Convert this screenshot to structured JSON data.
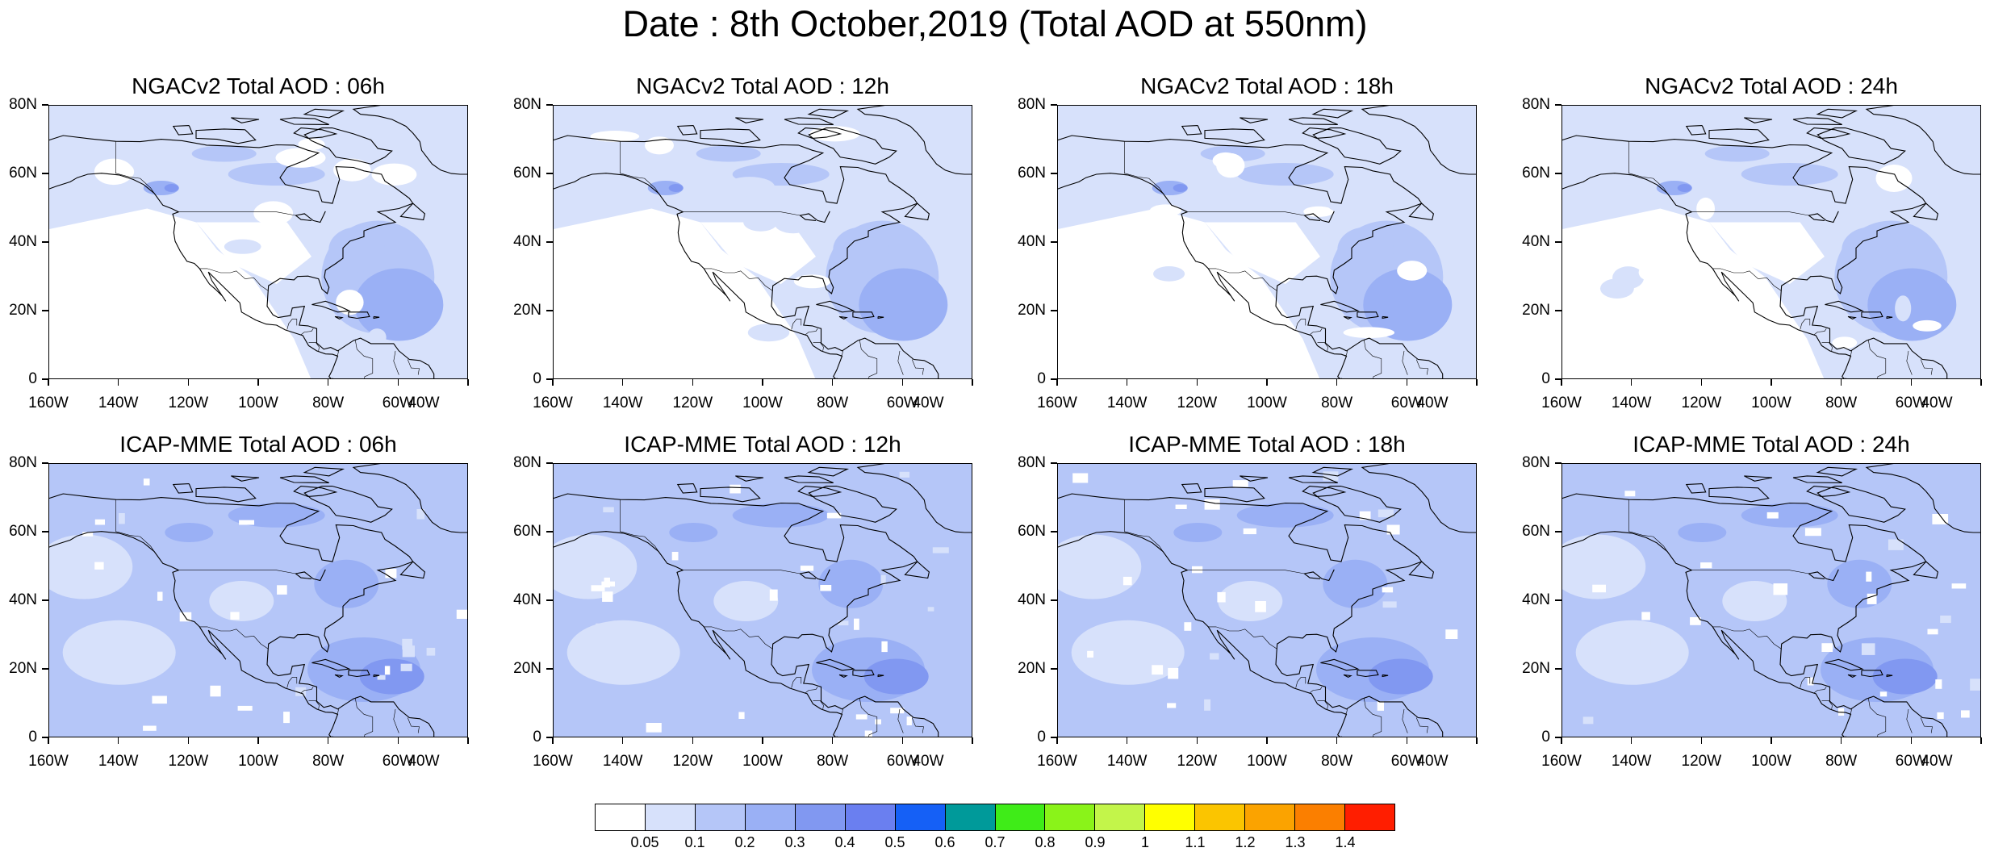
{
  "title": "Date : 8th October,2019 (Total AOD at 550nm)",
  "axes": {
    "lat_labels": [
      "80N",
      "60N",
      "40N",
      "20N",
      "0"
    ],
    "lon_labels": [
      "160W",
      "140W",
      "120W",
      "100W",
      "80W",
      "60W",
      "40W"
    ],
    "lat_range": [
      0,
      80
    ],
    "lon_range": [
      -160,
      -40
    ]
  },
  "panels": [
    {
      "title": "NGACv2 Total AOD : 06h",
      "model": "NGACv2",
      "hour": "06h"
    },
    {
      "title": "NGACv2 Total AOD : 12h",
      "model": "NGACv2",
      "hour": "12h"
    },
    {
      "title": "NGACv2 Total AOD : 18h",
      "model": "NGACv2",
      "hour": "18h"
    },
    {
      "title": "NGACv2 Total AOD : 24h",
      "model": "NGACv2",
      "hour": "24h"
    },
    {
      "title": "ICAP-MME Total AOD : 06h",
      "model": "ICAP-MME",
      "hour": "06h"
    },
    {
      "title": "ICAP-MME Total AOD : 12h",
      "model": "ICAP-MME",
      "hour": "12h"
    },
    {
      "title": "ICAP-MME Total AOD : 18h",
      "model": "ICAP-MME",
      "hour": "18h"
    },
    {
      "title": "ICAP-MME Total AOD : 24h",
      "model": "ICAP-MME",
      "hour": "24h"
    }
  ],
  "colorbar": {
    "labels": [
      "0.05",
      "0.1",
      "0.2",
      "0.3",
      "0.4",
      "0.5",
      "0.6",
      "0.7",
      "0.8",
      "0.9",
      "1",
      "1.1",
      "1.2",
      "1.3",
      "1.4"
    ],
    "colors": [
      "#ffffff",
      "#d7e1fb",
      "#b5c6f8",
      "#9ab0f5",
      "#8198f1",
      "#6a7ff0",
      "#1560f6",
      "#009a9a",
      "#3fec18",
      "#8af319",
      "#c3f54a",
      "#ffff00",
      "#fbc500",
      "#fba300",
      "#fb7f00",
      "#ff1e00"
    ]
  }
}
